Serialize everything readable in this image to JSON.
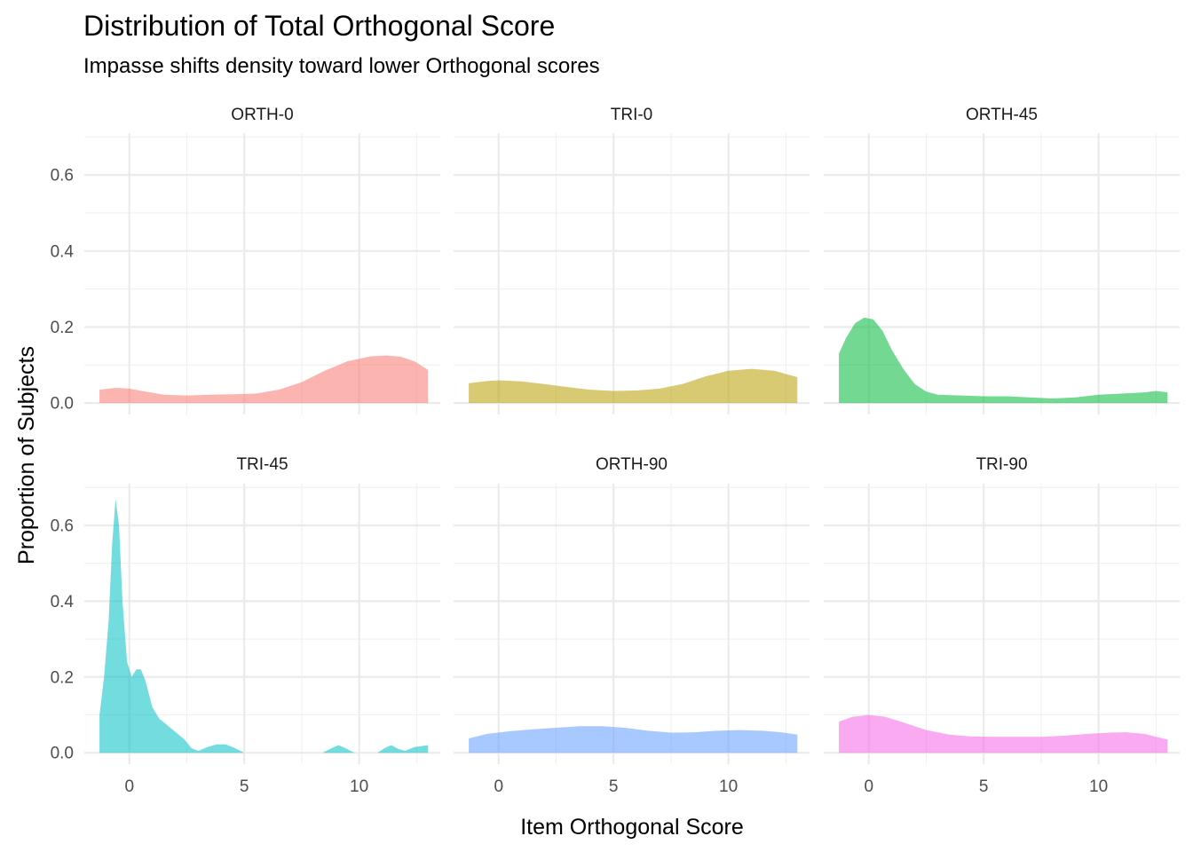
{
  "chart_data": {
    "type": "area",
    "subtype": "density-faceted",
    "title": "Distribution of Total Orthogonal Score",
    "subtitle": "Impasse shifts density toward lower Orthogonal scores",
    "xlabel": "Item Orthogonal Score",
    "ylabel": "Proportion of Subjects",
    "xlim": [
      -1.5,
      13
    ],
    "ylim": [
      0,
      0.7
    ],
    "x_ticks": [
      0,
      5,
      10
    ],
    "y_ticks": [
      0.0,
      0.2,
      0.4,
      0.6
    ],
    "x_tick_labels": [
      "0",
      "5",
      "10"
    ],
    "y_tick_labels": [
      "0.0",
      "0.2",
      "0.4",
      "0.6"
    ],
    "grid": true,
    "legend": "none",
    "facets": [
      {
        "label": "ORTH-0",
        "color": "#F8766D",
        "points": [
          [
            -1.3,
            0.035
          ],
          [
            -0.6,
            0.04
          ],
          [
            0,
            0.038
          ],
          [
            0.7,
            0.03
          ],
          [
            1.5,
            0.022
          ],
          [
            2.5,
            0.02
          ],
          [
            3.5,
            0.022
          ],
          [
            4.5,
            0.023
          ],
          [
            5.5,
            0.025
          ],
          [
            6.5,
            0.035
          ],
          [
            7.5,
            0.055
          ],
          [
            8.5,
            0.085
          ],
          [
            9.5,
            0.11
          ],
          [
            10.5,
            0.123
          ],
          [
            11.2,
            0.125
          ],
          [
            11.8,
            0.122
          ],
          [
            12.4,
            0.11
          ],
          [
            13,
            0.087
          ]
        ]
      },
      {
        "label": "TRI-0",
        "color": "#B79F00",
        "points": [
          [
            -1.3,
            0.052
          ],
          [
            -0.5,
            0.058
          ],
          [
            0,
            0.06
          ],
          [
            1,
            0.057
          ],
          [
            2,
            0.05
          ],
          [
            3,
            0.042
          ],
          [
            4,
            0.035
          ],
          [
            5,
            0.032
          ],
          [
            6,
            0.033
          ],
          [
            7,
            0.038
          ],
          [
            8,
            0.05
          ],
          [
            9,
            0.07
          ],
          [
            10,
            0.085
          ],
          [
            11,
            0.09
          ],
          [
            12,
            0.085
          ],
          [
            13,
            0.068
          ]
        ]
      },
      {
        "label": "ORTH-45",
        "color": "#00BA38",
        "points": [
          [
            -1.3,
            0.13
          ],
          [
            -1,
            0.17
          ],
          [
            -0.6,
            0.21
          ],
          [
            -0.2,
            0.225
          ],
          [
            0.2,
            0.22
          ],
          [
            0.6,
            0.19
          ],
          [
            1,
            0.14
          ],
          [
            1.5,
            0.09
          ],
          [
            2,
            0.05
          ],
          [
            2.5,
            0.03
          ],
          [
            3,
            0.022
          ],
          [
            4,
            0.02
          ],
          [
            5,
            0.018
          ],
          [
            6,
            0.018
          ],
          [
            7,
            0.015
          ],
          [
            8,
            0.012
          ],
          [
            9,
            0.015
          ],
          [
            10,
            0.022
          ],
          [
            11,
            0.025
          ],
          [
            12,
            0.028
          ],
          [
            12.5,
            0.032
          ],
          [
            13,
            0.028
          ]
        ]
      },
      {
        "label": "TRI-45",
        "color": "#00BFC4",
        "points": [
          [
            -1.3,
            0.1
          ],
          [
            -1.1,
            0.2
          ],
          [
            -0.9,
            0.35
          ],
          [
            -0.75,
            0.55
          ],
          [
            -0.6,
            0.67
          ],
          [
            -0.45,
            0.6
          ],
          [
            -0.3,
            0.4
          ],
          [
            -0.1,
            0.24
          ],
          [
            0.1,
            0.2
          ],
          [
            0.3,
            0.22
          ],
          [
            0.5,
            0.22
          ],
          [
            0.7,
            0.19
          ],
          [
            1,
            0.12
          ],
          [
            1.3,
            0.09
          ],
          [
            1.7,
            0.07
          ],
          [
            2.1,
            0.05
          ],
          [
            2.4,
            0.035
          ],
          [
            2.7,
            0.012
          ],
          [
            3,
            0.005
          ],
          [
            3.4,
            0.015
          ],
          [
            3.8,
            0.022
          ],
          [
            4.2,
            0.022
          ],
          [
            4.6,
            0.012
          ],
          [
            5,
            0
          ],
          [
            8.4,
            0
          ],
          [
            8.8,
            0.012
          ],
          [
            9.1,
            0.02
          ],
          [
            9.4,
            0.012
          ],
          [
            9.8,
            0
          ],
          [
            10.8,
            0
          ],
          [
            11.1,
            0.012
          ],
          [
            11.4,
            0.02
          ],
          [
            11.7,
            0.01
          ],
          [
            12.0,
            0.005
          ],
          [
            12.4,
            0.015
          ],
          [
            13,
            0.02
          ]
        ]
      },
      {
        "label": "ORTH-90",
        "color": "#619CFF",
        "points": [
          [
            -1.3,
            0.038
          ],
          [
            -0.5,
            0.05
          ],
          [
            0.5,
            0.057
          ],
          [
            1.5,
            0.062
          ],
          [
            2.5,
            0.066
          ],
          [
            3.5,
            0.07
          ],
          [
            4.5,
            0.07
          ],
          [
            5.5,
            0.066
          ],
          [
            6.5,
            0.058
          ],
          [
            7.5,
            0.053
          ],
          [
            8.5,
            0.054
          ],
          [
            9.5,
            0.058
          ],
          [
            10.5,
            0.06
          ],
          [
            11.5,
            0.058
          ],
          [
            12.3,
            0.054
          ],
          [
            13,
            0.048
          ]
        ]
      },
      {
        "label": "TRI-90",
        "color": "#F564E3",
        "points": [
          [
            -1.3,
            0.082
          ],
          [
            -0.7,
            0.095
          ],
          [
            0,
            0.1
          ],
          [
            0.7,
            0.095
          ],
          [
            1.5,
            0.08
          ],
          [
            2.5,
            0.06
          ],
          [
            3.5,
            0.048
          ],
          [
            4.5,
            0.043
          ],
          [
            5.5,
            0.042
          ],
          [
            6.5,
            0.042
          ],
          [
            7.5,
            0.042
          ],
          [
            8.5,
            0.045
          ],
          [
            9.5,
            0.05
          ],
          [
            10.5,
            0.053
          ],
          [
            11.2,
            0.054
          ],
          [
            12,
            0.05
          ],
          [
            12.5,
            0.042
          ],
          [
            13,
            0.035
          ]
        ]
      }
    ]
  }
}
